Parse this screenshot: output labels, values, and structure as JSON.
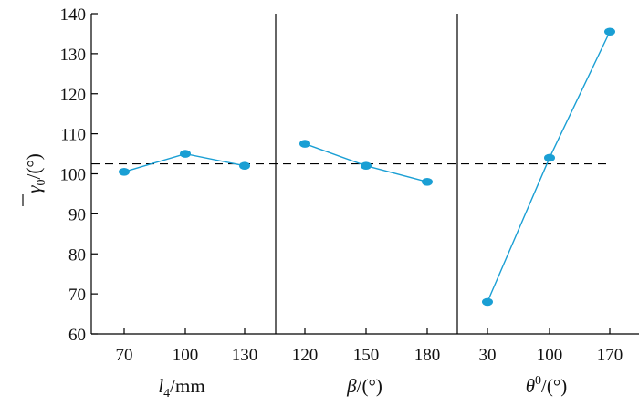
{
  "chart_data": {
    "type": "line",
    "ylabel_var": "γ",
    "ylabel_sub": "0",
    "ylabel_unit": "/(°)",
    "ylim": [
      60,
      140
    ],
    "yticks": [
      60,
      70,
      80,
      90,
      100,
      110,
      120,
      130,
      140
    ],
    "reference_line": 102.5,
    "grid": false,
    "panels": [
      {
        "xlabel_var": "l",
        "xlabel_sub": "4",
        "xlabel_unit": "/mm",
        "categories": [
          "70",
          "100",
          "130"
        ],
        "values": [
          100.5,
          105,
          102
        ]
      },
      {
        "xlabel_var": "β",
        "xlabel_sub": "",
        "xlabel_unit": "/(°)",
        "categories": [
          "120",
          "150",
          "180"
        ],
        "values": [
          107.5,
          102,
          98
        ]
      },
      {
        "xlabel_var": "θ",
        "xlabel_sup": "0",
        "xlabel_unit": "/(°)",
        "categories": [
          "30",
          "100",
          "170"
        ],
        "values": [
          68,
          104,
          135.5
        ]
      }
    ],
    "colors": {
      "series": "#1a9fd4",
      "axis": "#000000"
    }
  }
}
